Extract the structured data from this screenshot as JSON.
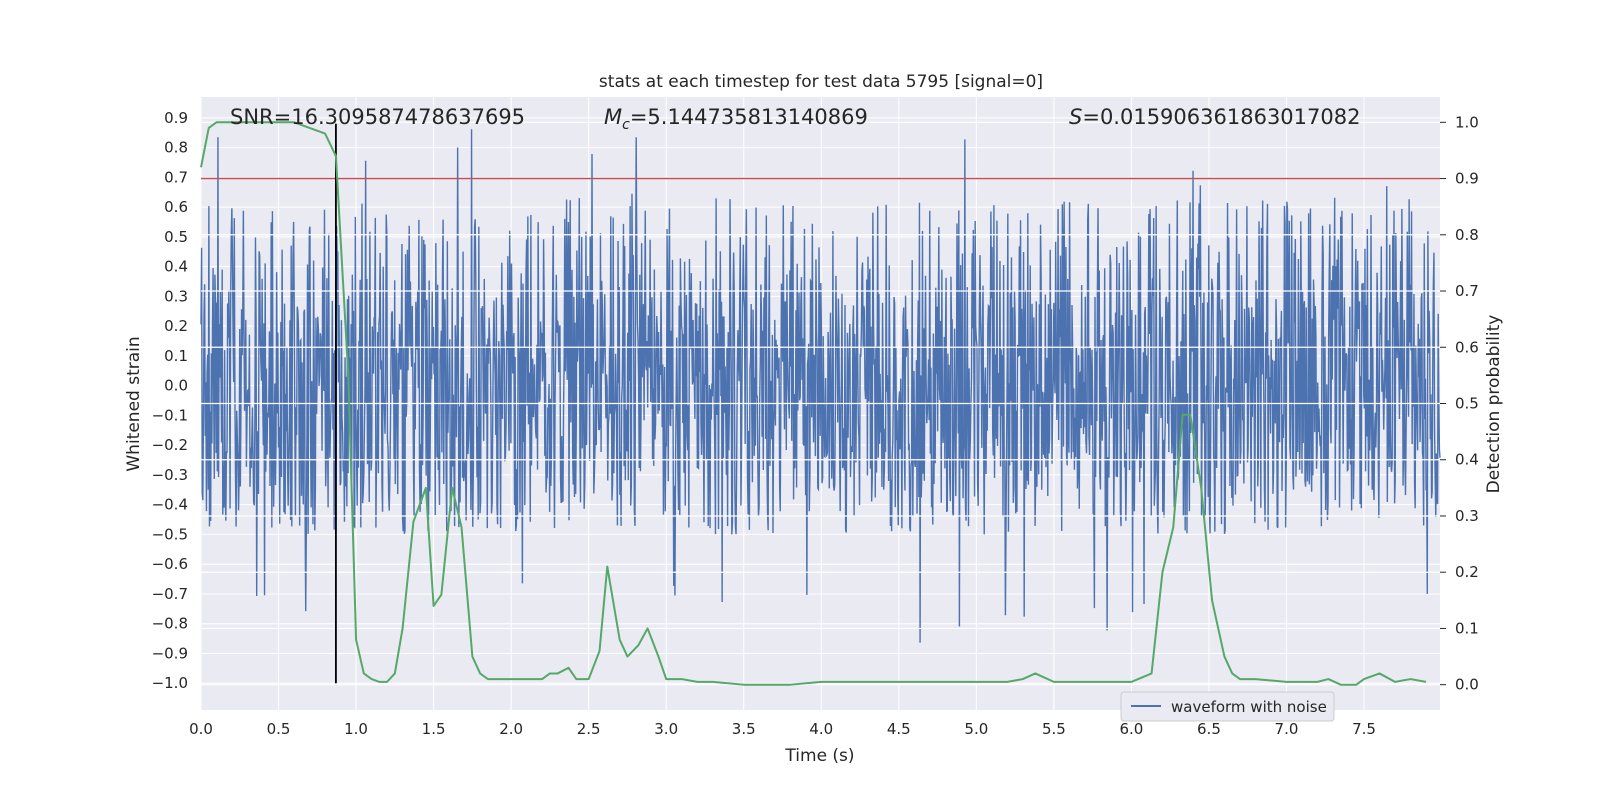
{
  "chart_data": {
    "type": "line",
    "title": "stats at each timestep for test data 5795 [signal=0]",
    "xlabel": "Time (s)",
    "ylabel": "Whitened strain",
    "y2label": "Detection probability",
    "xlim": [
      0.0,
      7.99
    ],
    "ylim": [
      -1.09,
      0.97
    ],
    "y2lim": [
      -0.045,
      1.045
    ],
    "xticks": [
      "0.0",
      "0.5",
      "1.0",
      "1.5",
      "2.0",
      "2.5",
      "3.0",
      "3.5",
      "4.0",
      "4.5",
      "5.0",
      "5.5",
      "6.0",
      "6.5",
      "7.0",
      "7.5"
    ],
    "yticks": [
      "0.9",
      "0.8",
      "0.7",
      "0.6",
      "0.5",
      "0.4",
      "0.3",
      "0.2",
      "0.1",
      "0.0",
      "-0.1",
      "-0.2",
      "-0.3",
      "-0.4",
      "-0.5",
      "-0.6",
      "-0.7",
      "-0.8",
      "-0.9",
      "-1.0"
    ],
    "y2ticks": [
      "1.0",
      "0.9",
      "0.8",
      "0.7",
      "0.6",
      "0.5",
      "0.4",
      "0.3",
      "0.2",
      "0.1",
      "0.0"
    ],
    "grid": true,
    "legend": {
      "placement": "lower-right",
      "entries": [
        "waveform with noise"
      ]
    },
    "annotations": {
      "snr": "SNR=16.309587478637695",
      "mc_symbol": "M",
      "mc_sub": "c",
      "mc_value": "=5.144735813140869",
      "s_symbol": "S",
      "s_value": "=0.015906361863017082"
    },
    "threshold_line": {
      "axis": "right",
      "value": 0.9,
      "color": "#c44e52"
    },
    "vertical_marker": {
      "x": 0.87,
      "y_from": -1.0,
      "y_to": 0.88,
      "color": "#000000"
    },
    "waveform": {
      "name": "waveform with noise",
      "color": "#4c72b0",
      "samples": 2048,
      "core_amplitude": 0.3,
      "spike_max": 0.88,
      "spike_min": -1.0
    },
    "series": [
      {
        "name": "",
        "axis": "right",
        "color": "#55a868",
        "x": [
          0.0,
          0.05,
          0.1,
          0.2,
          0.3,
          0.4,
          0.5,
          0.6,
          0.7,
          0.8,
          0.87,
          0.95,
          1.0,
          1.05,
          1.1,
          1.15,
          1.2,
          1.25,
          1.3,
          1.37,
          1.45,
          1.5,
          1.55,
          1.62,
          1.68,
          1.75,
          1.8,
          1.85,
          1.9,
          2.0,
          2.1,
          2.2,
          2.25,
          2.3,
          2.37,
          2.42,
          2.5,
          2.57,
          2.62,
          2.7,
          2.75,
          2.82,
          2.88,
          2.95,
          3.0,
          3.1,
          3.2,
          3.3,
          3.5,
          3.8,
          4.0,
          4.05,
          4.2,
          4.5,
          4.8,
          5.0,
          5.2,
          5.3,
          5.38,
          5.5,
          5.6,
          5.7,
          5.8,
          6.0,
          6.13,
          6.2,
          6.27,
          6.33,
          6.38,
          6.45,
          6.52,
          6.6,
          6.65,
          6.7,
          6.8,
          7.0,
          7.2,
          7.27,
          7.35,
          7.45,
          7.5,
          7.6,
          7.7,
          7.8,
          7.9
        ],
        "values": [
          0.92,
          0.99,
          1.0,
          1.0,
          1.0,
          1.0,
          1.0,
          1.0,
          0.99,
          0.98,
          0.94,
          0.55,
          0.08,
          0.02,
          0.01,
          0.005,
          0.005,
          0.02,
          0.1,
          0.29,
          0.35,
          0.14,
          0.16,
          0.35,
          0.28,
          0.05,
          0.02,
          0.01,
          0.01,
          0.01,
          0.01,
          0.01,
          0.02,
          0.02,
          0.03,
          0.01,
          0.01,
          0.06,
          0.21,
          0.08,
          0.05,
          0.07,
          0.1,
          0.05,
          0.01,
          0.01,
          0.005,
          0.005,
          0.0,
          0.0,
          0.005,
          0.005,
          0.005,
          0.005,
          0.005,
          0.005,
          0.005,
          0.01,
          0.02,
          0.005,
          0.005,
          0.005,
          0.005,
          0.005,
          0.02,
          0.2,
          0.28,
          0.48,
          0.48,
          0.35,
          0.15,
          0.05,
          0.02,
          0.01,
          0.01,
          0.005,
          0.005,
          0.01,
          0.0,
          0.0,
          0.01,
          0.02,
          0.005,
          0.01,
          0.005
        ]
      }
    ]
  }
}
